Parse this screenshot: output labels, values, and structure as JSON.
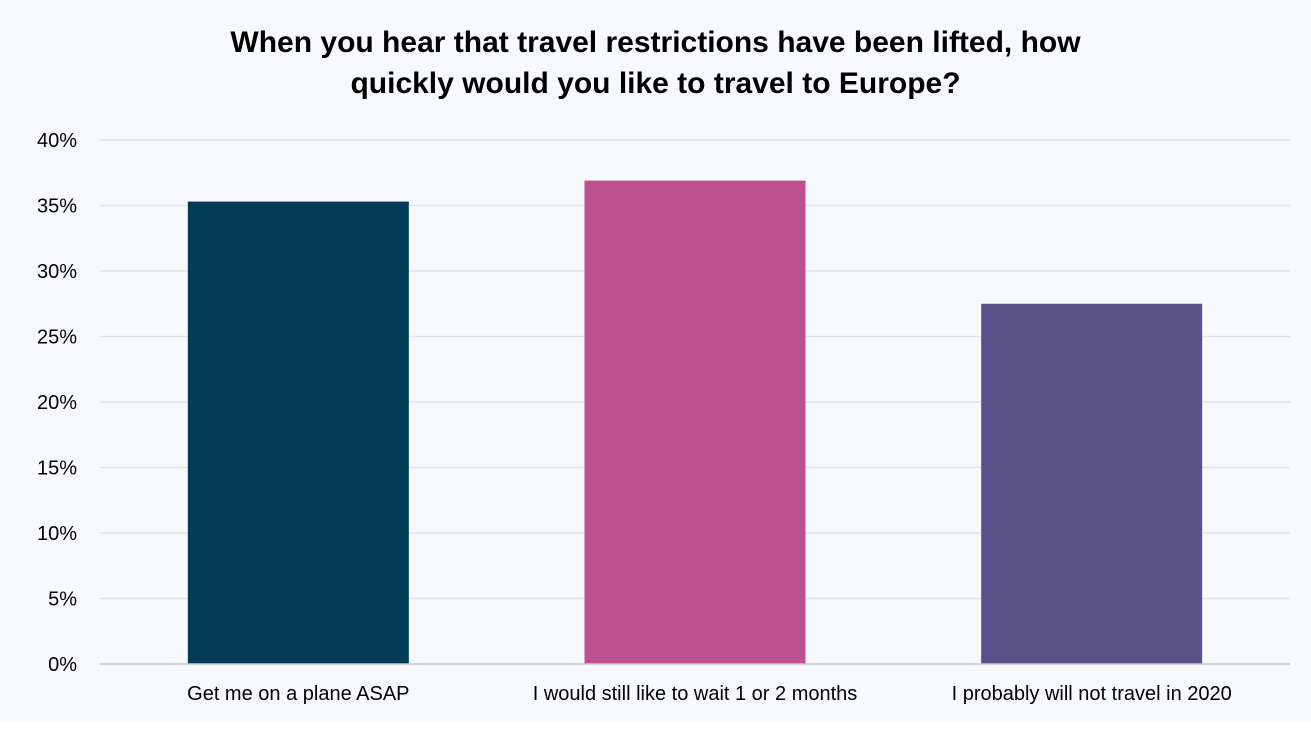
{
  "chart_data": {
    "type": "bar",
    "title_lines": [
      "When you hear that travel restrictions have been lifted, how",
      "quickly would you like to travel to Europe?"
    ],
    "categories": [
      "Get me on a plane ASAP",
      "I would still like to wait 1 or 2 months",
      "I probably will not travel in 2020"
    ],
    "values": [
      35.3,
      36.9,
      27.5
    ],
    "colors": [
      "#013c56",
      "#bd5190",
      "#5a518b"
    ],
    "ylim": [
      0,
      40
    ],
    "yticks": [
      0,
      5,
      10,
      15,
      20,
      25,
      30,
      35,
      40
    ],
    "ytick_labels": [
      "0%",
      "5%",
      "10%",
      "15%",
      "20%",
      "25%",
      "30%",
      "35%",
      "40%"
    ],
    "grid": true,
    "legend": "none"
  }
}
